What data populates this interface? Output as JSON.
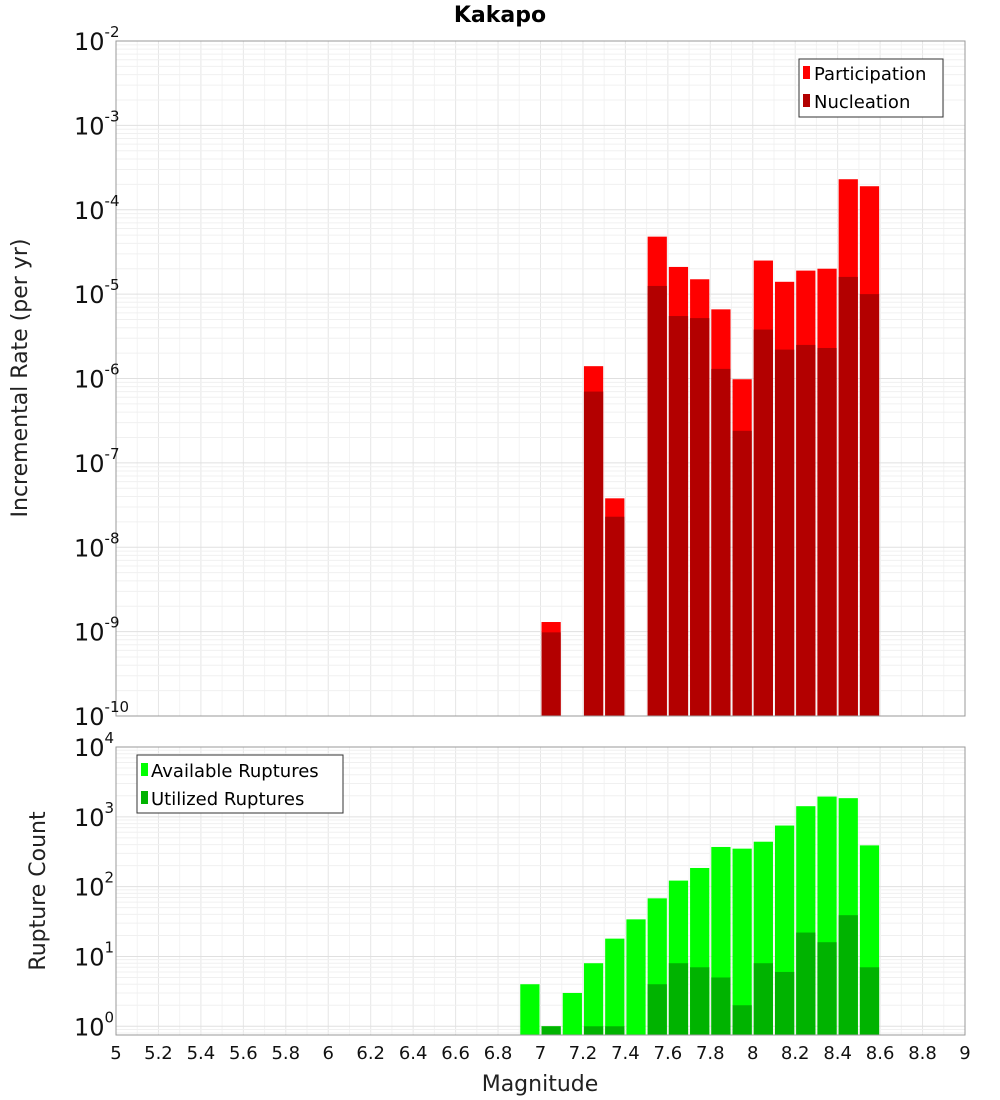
{
  "chart_data": [
    {
      "type": "bar",
      "title": "Kakapo",
      "xlabel": "",
      "ylabel": "Incremental Rate (per yr)",
      "xlim": [
        5,
        9
      ],
      "ylim": [
        1e-10,
        0.01
      ],
      "yscale": "log",
      "grid": true,
      "legend_position": "top-right",
      "bin_width": 0.1,
      "x": [
        7.05,
        7.25,
        7.35,
        7.55,
        7.65,
        7.75,
        7.85,
        7.95,
        8.05,
        8.15,
        8.25,
        8.35,
        8.45,
        8.55
      ],
      "series": [
        {
          "name": "Participation",
          "color": "#ff0000",
          "values": [
            1.3e-09,
            1.4e-06,
            3.8e-08,
            4.8e-05,
            2.1e-05,
            1.5e-05,
            6.6e-06,
            9.8e-07,
            2.5e-05,
            1.4e-05,
            1.9e-05,
            2e-05,
            0.00023,
            0.00019
          ]
        },
        {
          "name": "Nucleation",
          "color": "#b30000",
          "values": [
            9.8e-10,
            7e-07,
            2.3e-08,
            1.25e-05,
            5.5e-06,
            5.2e-06,
            1.3e-06,
            2.4e-07,
            3.8e-06,
            2.2e-06,
            2.5e-06,
            2.3e-06,
            1.6e-05,
            1e-05
          ]
        }
      ],
      "yticks": [
        {
          "base": "10",
          "exp": "-2"
        },
        {
          "base": "10",
          "exp": "-3"
        },
        {
          "base": "10",
          "exp": "-4"
        },
        {
          "base": "10",
          "exp": "-5"
        },
        {
          "base": "10",
          "exp": "-6"
        },
        {
          "base": "10",
          "exp": "-7"
        },
        {
          "base": "10",
          "exp": "-8"
        },
        {
          "base": "10",
          "exp": "-9"
        },
        {
          "base": "10",
          "exp": "-10"
        }
      ]
    },
    {
      "type": "bar",
      "xlabel": "Magnitude",
      "ylabel": "Rupture Count",
      "xlim": [
        5,
        9
      ],
      "ylim": [
        0.75,
        10000
      ],
      "yscale": "log",
      "grid": true,
      "legend_position": "top-left",
      "bin_width": 0.1,
      "x": [
        6.95,
        7.05,
        7.15,
        7.25,
        7.35,
        7.45,
        7.55,
        7.65,
        7.75,
        7.85,
        7.95,
        8.05,
        8.15,
        8.25,
        8.35,
        8.45,
        8.55
      ],
      "series": [
        {
          "name": "Available Ruptures",
          "color": "#00ff00",
          "values": [
            4,
            1,
            3,
            8,
            18,
            34,
            68,
            122,
            185,
            370,
            350,
            440,
            750,
            1420,
            1950,
            1850,
            390
          ]
        },
        {
          "name": "Utilized Ruptures",
          "color": "#00b300",
          "values": [
            0,
            1,
            0,
            1,
            1,
            0,
            4,
            8,
            7,
            5,
            2,
            8,
            6,
            22,
            16,
            39,
            7
          ]
        }
      ],
      "yticks": [
        {
          "base": "10",
          "exp": "4"
        },
        {
          "base": "10",
          "exp": "3"
        },
        {
          "base": "10",
          "exp": "2"
        },
        {
          "base": "10",
          "exp": "1"
        },
        {
          "base": "10",
          "exp": "0"
        }
      ],
      "xticks": [
        "5",
        "5.2",
        "5.4",
        "5.6",
        "5.8",
        "6",
        "6.2",
        "6.4",
        "6.6",
        "6.8",
        "7",
        "7.2",
        "7.4",
        "7.6",
        "7.8",
        "8",
        "8.2",
        "8.4",
        "8.6",
        "8.8",
        "9"
      ]
    }
  ]
}
